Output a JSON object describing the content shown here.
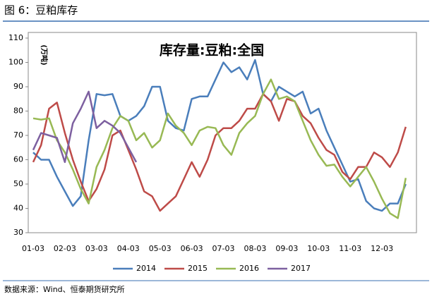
{
  "header": "图 6：豆粕库存",
  "source": "数据来源：Wind、恒泰期货研究所",
  "chart_data": {
    "type": "line",
    "title": "库存量:豆粕:全国",
    "y_label": "(万吨)",
    "categories": [
      "01-03",
      null,
      null,
      null,
      "02-03",
      null,
      null,
      null,
      "03-03",
      null,
      null,
      null,
      "04-03",
      null,
      null,
      null,
      "05-03",
      null,
      null,
      null,
      "06-03",
      null,
      null,
      null,
      "07-03",
      null,
      null,
      null,
      "08-03",
      null,
      null,
      null,
      "09-03",
      null,
      null,
      null,
      "10-03",
      null,
      null,
      null,
      "11-03",
      null,
      null,
      null,
      "12-03",
      null,
      null,
      null
    ],
    "ylim": [
      30,
      110
    ],
    "yticks": [
      30,
      40,
      50,
      60,
      70,
      80,
      90,
      100,
      110
    ],
    "series": [
      {
        "name": "2014",
        "color": "#4a7ebb",
        "values": [
          63,
          60,
          60,
          53,
          47,
          41,
          45,
          68,
          87,
          86.5,
          87,
          78,
          76,
          78,
          82,
          90,
          90,
          76,
          73,
          72,
          85,
          86,
          86,
          93,
          100,
          96,
          98,
          93,
          101,
          87,
          84,
          90,
          88,
          86,
          88,
          79,
          81,
          72,
          65,
          58,
          51,
          52,
          43,
          40,
          39,
          42,
          42,
          50
        ]
      },
      {
        "name": "2015",
        "color": "#be4b48",
        "values": [
          59,
          66,
          81,
          83.5,
          71,
          60,
          51,
          43,
          48,
          56,
          70,
          72,
          64,
          56,
          47,
          45,
          39,
          42,
          45,
          52,
          59,
          53,
          60,
          70,
          73,
          73,
          76,
          81,
          81,
          87,
          84,
          76,
          85,
          84,
          78,
          75,
          69,
          64,
          62,
          55,
          52,
          57,
          57,
          63,
          61,
          57,
          63,
          73.5
        ]
      },
      {
        "name": "2016",
        "color": "#98b954",
        "values": [
          77,
          76.5,
          77,
          68,
          63,
          56,
          48,
          42,
          57,
          64,
          73,
          78,
          76,
          68,
          71,
          65,
          68,
          79,
          74,
          71,
          66,
          72,
          73.5,
          73,
          66,
          62,
          71,
          75,
          78,
          87,
          93,
          85,
          86,
          84,
          76,
          68,
          62,
          57.5,
          58,
          53,
          49,
          53,
          57,
          51,
          44,
          38,
          36,
          52.5
        ]
      },
      {
        "name": "2017",
        "color": "#7d60a0",
        "values": [
          64,
          71,
          70,
          69,
          59,
          75,
          81,
          88,
          73,
          76,
          74,
          71,
          65,
          59,
          null,
          null,
          null,
          null,
          null,
          null,
          null,
          null,
          null,
          null,
          null,
          null,
          null,
          null,
          null,
          null,
          null,
          null,
          null,
          null,
          null,
          null,
          null,
          null,
          null,
          null,
          null,
          null,
          null,
          null,
          null,
          null,
          null,
          null
        ]
      }
    ]
  }
}
